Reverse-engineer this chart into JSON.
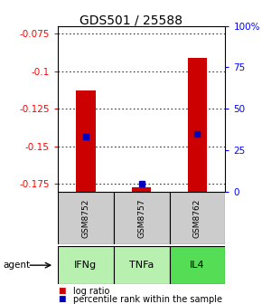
{
  "title": "GDS501 / 25588",
  "samples": [
    "GSM8752",
    "GSM8757",
    "GSM8762"
  ],
  "agents": [
    "IFNg",
    "TNFa",
    "IL4"
  ],
  "log_ratios": [
    -0.113,
    -0.177,
    -0.091
  ],
  "percentile_ranks": [
    33,
    5,
    35
  ],
  "ylim_left": [
    -0.18,
    -0.07
  ],
  "ylim_right": [
    0,
    100
  ],
  "left_ticks": [
    -0.175,
    -0.15,
    -0.125,
    -0.1,
    -0.075
  ],
  "right_ticks": [
    0,
    25,
    50,
    75,
    100
  ],
  "right_tick_labels": [
    "0",
    "25",
    "50",
    "75",
    "100%"
  ],
  "bar_color": "#cc0000",
  "dot_color": "#0000bb",
  "agent_colors": [
    "#b8f0b0",
    "#b8f0b0",
    "#55dd55"
  ],
  "sample_bg": "#cccccc",
  "title_fontsize": 10,
  "tick_fontsize": 7.5,
  "legend_fontsize": 7,
  "bar_width": 0.35
}
